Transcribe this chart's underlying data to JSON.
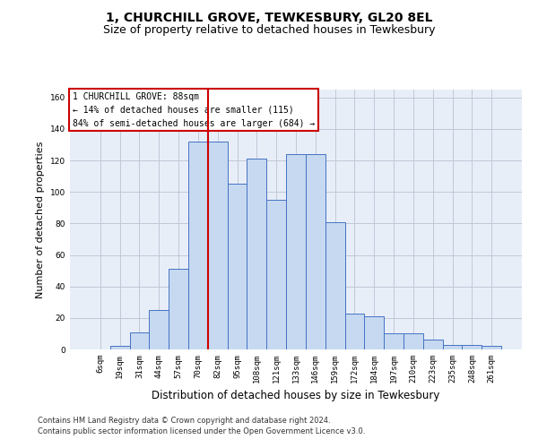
{
  "title": "1, CHURCHILL GROVE, TEWKESBURY, GL20 8EL",
  "subtitle": "Size of property relative to detached houses in Tewkesbury",
  "xlabel": "Distribution of detached houses by size in Tewkesbury",
  "ylabel": "Number of detached properties",
  "bar_labels": [
    "6sqm",
    "19sqm",
    "31sqm",
    "44sqm",
    "57sqm",
    "70sqm",
    "82sqm",
    "95sqm",
    "108sqm",
    "121sqm",
    "133sqm",
    "146sqm",
    "159sqm",
    "172sqm",
    "184sqm",
    "197sqm",
    "210sqm",
    "223sqm",
    "235sqm",
    "248sqm",
    "261sqm"
  ],
  "bar_values": [
    0,
    2,
    11,
    25,
    51,
    132,
    132,
    105,
    121,
    95,
    124,
    124,
    81,
    23,
    21,
    10,
    10,
    6,
    3,
    3,
    2
  ],
  "bar_color": "#c6d9f0",
  "bar_edge_color": "#4472c4",
  "vline_x": 5.5,
  "vline_color": "#cc0000",
  "annotation_box_text": "1 CHURCHILL GROVE: 88sqm\n← 14% of detached houses are smaller (115)\n84% of semi-detached houses are larger (684) →",
  "annotation_box_edgecolor": "#cc0000",
  "annotation_box_facecolor": "white",
  "ylim": [
    0,
    165
  ],
  "yticks": [
    0,
    20,
    40,
    60,
    80,
    100,
    120,
    140,
    160
  ],
  "grid_color": "#c0c8d8",
  "bg_color": "#e8eef8",
  "footer_line1": "Contains HM Land Registry data © Crown copyright and database right 2024.",
  "footer_line2": "Contains public sector information licensed under the Open Government Licence v3.0.",
  "title_fontsize": 10,
  "subtitle_fontsize": 9,
  "xlabel_fontsize": 8.5,
  "ylabel_fontsize": 8,
  "tick_fontsize": 6.5,
  "annotation_fontsize": 7,
  "footer_fontsize": 6
}
